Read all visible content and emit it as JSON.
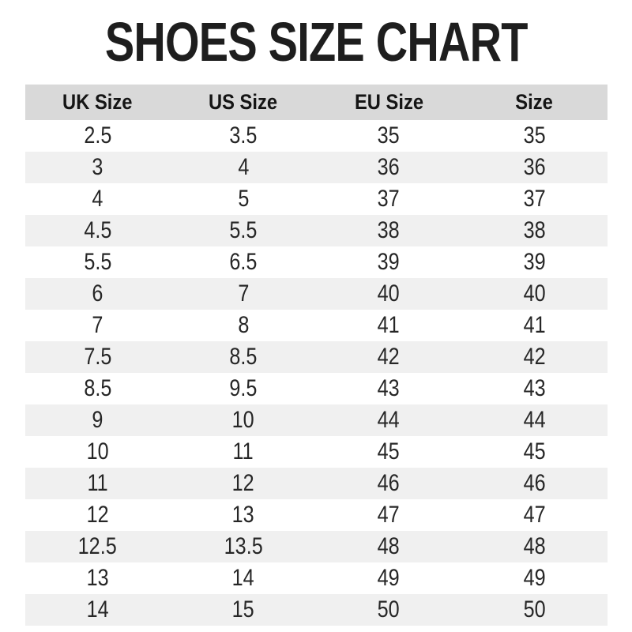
{
  "title": "SHOES SIZE CHART",
  "chart_data": {
    "type": "table",
    "title": "SHOES SIZE CHART",
    "columns": [
      "UK Size",
      "US Size",
      "EU Size",
      "Size"
    ],
    "rows": [
      [
        "2.5",
        "3.5",
        "35",
        "35"
      ],
      [
        "3",
        "4",
        "36",
        "36"
      ],
      [
        "4",
        "5",
        "37",
        "37"
      ],
      [
        "4.5",
        "5.5",
        "38",
        "38"
      ],
      [
        "5.5",
        "6.5",
        "39",
        "39"
      ],
      [
        "6",
        "7",
        "40",
        "40"
      ],
      [
        "7",
        "8",
        "41",
        "41"
      ],
      [
        "7.5",
        "8.5",
        "42",
        "42"
      ],
      [
        "8.5",
        "9.5",
        "43",
        "43"
      ],
      [
        "9",
        "10",
        "44",
        "44"
      ],
      [
        "10",
        "11",
        "45",
        "45"
      ],
      [
        "11",
        "12",
        "46",
        "46"
      ],
      [
        "12",
        "13",
        "47",
        "47"
      ],
      [
        "12.5",
        "13.5",
        "48",
        "48"
      ],
      [
        "13",
        "14",
        "49",
        "49"
      ],
      [
        "14",
        "15",
        "50",
        "50"
      ]
    ],
    "layout": {
      "header_bg": "#d9d9d9",
      "alt_row_bg": "#f0f0f0",
      "row_bg": "#ffffff",
      "text_color": "#262626",
      "title_color": "#1e1e1e",
      "striping": "first data row white, then alternating shaded",
      "column_alignment": "center"
    }
  }
}
